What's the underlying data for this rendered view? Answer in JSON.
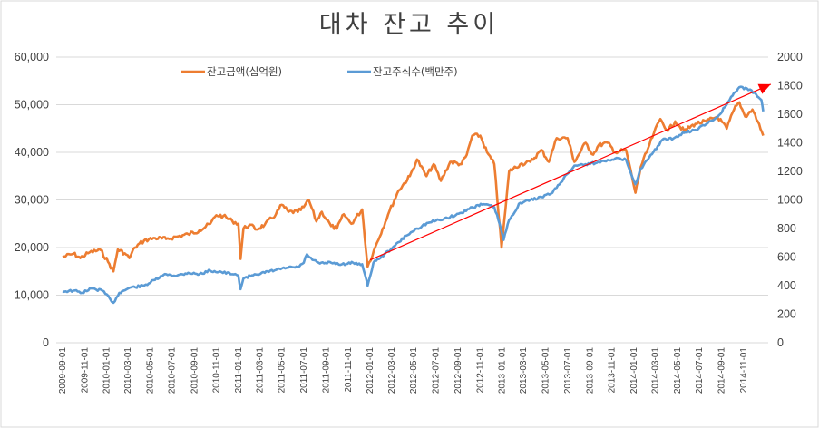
{
  "chart_data": {
    "type": "line",
    "title": "대차 잔고 추이",
    "x_ticks": [
      "2009-09-01",
      "2009-11-01",
      "2010-01-01",
      "2010-03-01",
      "2010-05-01",
      "2010-07-01",
      "2010-09-01",
      "2010-11-01",
      "2011-01-01",
      "2011-03-01",
      "2011-05-01",
      "2011-07-01",
      "2011-09-01",
      "2011-11-01",
      "2012-01-01",
      "2012-03-01",
      "2012-05-01",
      "2012-07-01",
      "2012-09-01",
      "2012-11-01",
      "2013-01-01",
      "2013-03-01",
      "2013-05-01",
      "2013-07-01",
      "2013-09-01",
      "2013-11-01",
      "2014-01-01",
      "2014-03-01",
      "2014-05-01",
      "2014-07-01",
      "2014-09-01",
      "2014-11-01"
    ],
    "y_left": {
      "ylim": [
        0,
        60000
      ],
      "ticks": [
        "0",
        "10,000",
        "20,000",
        "30,000",
        "40,000",
        "50,000",
        "60,000"
      ]
    },
    "y_right": {
      "ylim": [
        0,
        2000
      ],
      "ticks": [
        "0",
        "200",
        "400",
        "600",
        "800",
        "1000",
        "1200",
        "1400",
        "1600",
        "1800",
        "2000"
      ]
    },
    "grid": true,
    "legend_position": "top",
    "series": [
      {
        "name": "잔고금액(십억원)",
        "axis": "left",
        "color": "#ed7d31",
        "points": [
          [
            "2009-09-01",
            18000
          ],
          [
            "2009-10-01",
            18700
          ],
          [
            "2009-10-20",
            17800
          ],
          [
            "2009-11-15",
            19000
          ],
          [
            "2009-12-15",
            19500
          ],
          [
            "2010-01-05",
            17000
          ],
          [
            "2010-01-20",
            15000
          ],
          [
            "2010-02-01",
            19600
          ],
          [
            "2010-02-20",
            18800
          ],
          [
            "2010-03-05",
            17800
          ],
          [
            "2010-03-20",
            20000
          ],
          [
            "2010-04-15",
            21500
          ],
          [
            "2010-05-15",
            22000
          ],
          [
            "2010-06-15",
            21800
          ],
          [
            "2010-07-15",
            22300
          ],
          [
            "2010-08-15",
            22800
          ],
          [
            "2010-09-15",
            23600
          ],
          [
            "2010-10-15",
            25000
          ],
          [
            "2010-11-01",
            26800
          ],
          [
            "2010-11-20",
            26600
          ],
          [
            "2010-12-15",
            25600
          ],
          [
            "2011-01-01",
            25000
          ],
          [
            "2011-01-07",
            17600
          ],
          [
            "2011-01-15",
            24000
          ],
          [
            "2011-02-01",
            24800
          ],
          [
            "2011-02-20",
            23800
          ],
          [
            "2011-03-15",
            24800
          ],
          [
            "2011-04-15",
            27000
          ],
          [
            "2011-05-01",
            29000
          ],
          [
            "2011-05-20",
            27500
          ],
          [
            "2011-06-15",
            27500
          ],
          [
            "2011-07-01",
            28500
          ],
          [
            "2011-07-15",
            30000
          ],
          [
            "2011-08-05",
            25500
          ],
          [
            "2011-08-20",
            27500
          ],
          [
            "2011-09-15",
            24500
          ],
          [
            "2011-10-01",
            24000
          ],
          [
            "2011-10-20",
            27000
          ],
          [
            "2011-11-10",
            25000
          ],
          [
            "2011-12-10",
            28000
          ],
          [
            "2011-12-25",
            16000
          ],
          [
            "2012-01-20",
            21000
          ],
          [
            "2012-02-20",
            27000
          ],
          [
            "2012-03-20",
            32000
          ],
          [
            "2012-04-20",
            35000
          ],
          [
            "2012-05-10",
            38500
          ],
          [
            "2012-06-05",
            35000
          ],
          [
            "2012-06-25",
            37500
          ],
          [
            "2012-07-15",
            34000
          ],
          [
            "2012-08-10",
            38000
          ],
          [
            "2012-09-10",
            37500
          ],
          [
            "2012-09-25",
            39500
          ],
          [
            "2012-10-10",
            43500
          ],
          [
            "2012-11-01",
            43500
          ],
          [
            "2012-11-20",
            40000
          ],
          [
            "2012-12-10",
            37500
          ],
          [
            "2012-12-30",
            20000
          ],
          [
            "2013-01-10",
            28000
          ],
          [
            "2013-01-20",
            36000
          ],
          [
            "2013-02-20",
            37500
          ],
          [
            "2013-03-20",
            38000
          ],
          [
            "2013-04-20",
            40500
          ],
          [
            "2013-05-10",
            38000
          ],
          [
            "2013-06-01",
            43000
          ],
          [
            "2013-07-01",
            43000
          ],
          [
            "2013-07-20",
            38000
          ],
          [
            "2013-08-20",
            42000
          ],
          [
            "2013-09-10",
            39500
          ],
          [
            "2013-09-25",
            41500
          ],
          [
            "2013-10-20",
            42000
          ],
          [
            "2013-11-10",
            40000
          ],
          [
            "2013-12-10",
            40500
          ],
          [
            "2014-01-05",
            31500
          ],
          [
            "2014-01-20",
            37000
          ],
          [
            "2014-02-05",
            40000
          ],
          [
            "2014-02-25",
            44000
          ],
          [
            "2014-03-15",
            47000
          ],
          [
            "2014-04-05",
            44500
          ],
          [
            "2014-04-25",
            46500
          ],
          [
            "2014-05-20",
            44500
          ],
          [
            "2014-06-20",
            46000
          ],
          [
            "2014-07-20",
            46500
          ],
          [
            "2014-08-20",
            47500
          ],
          [
            "2014-09-15",
            45000
          ],
          [
            "2014-10-05",
            49000
          ],
          [
            "2014-10-20",
            50500
          ],
          [
            "2014-11-05",
            47500
          ],
          [
            "2014-11-25",
            49000
          ],
          [
            "2014-12-10",
            46500
          ],
          [
            "2014-12-25",
            43500
          ]
        ]
      },
      {
        "name": "잔고주식수(백만주)",
        "axis": "right",
        "color": "#5b9bd5",
        "points": [
          [
            "2009-09-01",
            360
          ],
          [
            "2009-10-01",
            365
          ],
          [
            "2009-10-25",
            350
          ],
          [
            "2009-11-20",
            380
          ],
          [
            "2009-12-20",
            365
          ],
          [
            "2010-01-10",
            310
          ],
          [
            "2010-01-20",
            280
          ],
          [
            "2010-02-05",
            350
          ],
          [
            "2010-03-05",
            385
          ],
          [
            "2010-04-15",
            400
          ],
          [
            "2010-05-15",
            440
          ],
          [
            "2010-06-15",
            480
          ],
          [
            "2010-07-15",
            470
          ],
          [
            "2010-08-15",
            490
          ],
          [
            "2010-09-15",
            480
          ],
          [
            "2010-10-15",
            505
          ],
          [
            "2010-11-15",
            495
          ],
          [
            "2010-12-15",
            480
          ],
          [
            "2011-01-01",
            470
          ],
          [
            "2011-01-07",
            375
          ],
          [
            "2011-01-15",
            450
          ],
          [
            "2011-02-15",
            480
          ],
          [
            "2011-03-15",
            490
          ],
          [
            "2011-04-15",
            510
          ],
          [
            "2011-05-15",
            525
          ],
          [
            "2011-06-15",
            530
          ],
          [
            "2011-07-01",
            560
          ],
          [
            "2011-07-10",
            620
          ],
          [
            "2011-07-25",
            580
          ],
          [
            "2011-08-15",
            555
          ],
          [
            "2011-09-15",
            560
          ],
          [
            "2011-10-15",
            550
          ],
          [
            "2011-11-15",
            560
          ],
          [
            "2011-12-10",
            550
          ],
          [
            "2011-12-25",
            400
          ],
          [
            "2012-01-10",
            560
          ],
          [
            "2012-02-10",
            620
          ],
          [
            "2012-03-10",
            680
          ],
          [
            "2012-04-10",
            750
          ],
          [
            "2012-05-10",
            800
          ],
          [
            "2012-06-10",
            840
          ],
          [
            "2012-07-10",
            860
          ],
          [
            "2012-08-10",
            880
          ],
          [
            "2012-09-10",
            910
          ],
          [
            "2012-10-10",
            950
          ],
          [
            "2012-11-10",
            970
          ],
          [
            "2012-12-10",
            950
          ],
          [
            "2012-12-25",
            830
          ],
          [
            "2013-01-05",
            720
          ],
          [
            "2013-01-20",
            860
          ],
          [
            "2013-02-20",
            980
          ],
          [
            "2013-03-20",
            1000
          ],
          [
            "2013-04-20",
            1020
          ],
          [
            "2013-05-20",
            1050
          ],
          [
            "2013-06-20",
            1150
          ],
          [
            "2013-07-20",
            1240
          ],
          [
            "2013-08-20",
            1250
          ],
          [
            "2013-09-20",
            1260
          ],
          [
            "2013-10-20",
            1280
          ],
          [
            "2013-11-10",
            1290
          ],
          [
            "2013-12-10",
            1280
          ],
          [
            "2014-01-05",
            1110
          ],
          [
            "2014-01-20",
            1220
          ],
          [
            "2014-02-20",
            1320
          ],
          [
            "2014-03-20",
            1420
          ],
          [
            "2014-04-20",
            1430
          ],
          [
            "2014-05-20",
            1470
          ],
          [
            "2014-06-20",
            1490
          ],
          [
            "2014-07-20",
            1530
          ],
          [
            "2014-08-20",
            1580
          ],
          [
            "2014-09-10",
            1650
          ],
          [
            "2014-10-01",
            1730
          ],
          [
            "2014-10-20",
            1790
          ],
          [
            "2014-11-10",
            1780
          ],
          [
            "2014-12-05",
            1740
          ],
          [
            "2014-12-20",
            1700
          ],
          [
            "2014-12-25",
            1620
          ]
        ]
      }
    ],
    "trendline": {
      "color": "#ff0000",
      "axis": "right",
      "start": [
        "2012-01-01",
        580
      ],
      "end": [
        "2015-01-15",
        1810
      ]
    }
  }
}
